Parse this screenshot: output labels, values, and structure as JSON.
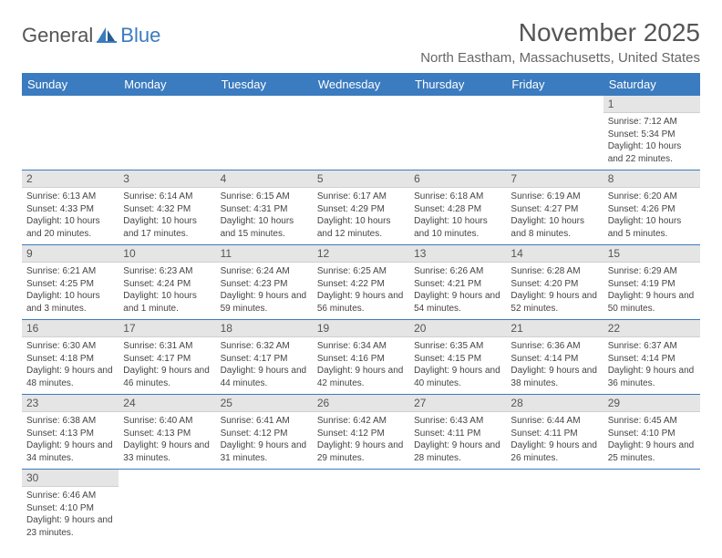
{
  "brand": {
    "text1": "General",
    "text2": "Blue"
  },
  "title": "November 2025",
  "location": "North Eastham, Massachusetts, United States",
  "colors": {
    "header_bg": "#3b7bbf",
    "header_text": "#ffffff",
    "daynum_bg": "#e5e5e5",
    "border": "#3b7bbf",
    "body_text": "#444444",
    "title_color": "#555555"
  },
  "day_headers": [
    "Sunday",
    "Monday",
    "Tuesday",
    "Wednesday",
    "Thursday",
    "Friday",
    "Saturday"
  ],
  "weeks": [
    [
      null,
      null,
      null,
      null,
      null,
      null,
      {
        "n": "1",
        "sr": "7:12 AM",
        "ss": "5:34 PM",
        "dl": "10 hours and 22 minutes."
      }
    ],
    [
      {
        "n": "2",
        "sr": "6:13 AM",
        "ss": "4:33 PM",
        "dl": "10 hours and 20 minutes."
      },
      {
        "n": "3",
        "sr": "6:14 AM",
        "ss": "4:32 PM",
        "dl": "10 hours and 17 minutes."
      },
      {
        "n": "4",
        "sr": "6:15 AM",
        "ss": "4:31 PM",
        "dl": "10 hours and 15 minutes."
      },
      {
        "n": "5",
        "sr": "6:17 AM",
        "ss": "4:29 PM",
        "dl": "10 hours and 12 minutes."
      },
      {
        "n": "6",
        "sr": "6:18 AM",
        "ss": "4:28 PM",
        "dl": "10 hours and 10 minutes."
      },
      {
        "n": "7",
        "sr": "6:19 AM",
        "ss": "4:27 PM",
        "dl": "10 hours and 8 minutes."
      },
      {
        "n": "8",
        "sr": "6:20 AM",
        "ss": "4:26 PM",
        "dl": "10 hours and 5 minutes."
      }
    ],
    [
      {
        "n": "9",
        "sr": "6:21 AM",
        "ss": "4:25 PM",
        "dl": "10 hours and 3 minutes."
      },
      {
        "n": "10",
        "sr": "6:23 AM",
        "ss": "4:24 PM",
        "dl": "10 hours and 1 minute."
      },
      {
        "n": "11",
        "sr": "6:24 AM",
        "ss": "4:23 PM",
        "dl": "9 hours and 59 minutes."
      },
      {
        "n": "12",
        "sr": "6:25 AM",
        "ss": "4:22 PM",
        "dl": "9 hours and 56 minutes."
      },
      {
        "n": "13",
        "sr": "6:26 AM",
        "ss": "4:21 PM",
        "dl": "9 hours and 54 minutes."
      },
      {
        "n": "14",
        "sr": "6:28 AM",
        "ss": "4:20 PM",
        "dl": "9 hours and 52 minutes."
      },
      {
        "n": "15",
        "sr": "6:29 AM",
        "ss": "4:19 PM",
        "dl": "9 hours and 50 minutes."
      }
    ],
    [
      {
        "n": "16",
        "sr": "6:30 AM",
        "ss": "4:18 PM",
        "dl": "9 hours and 48 minutes."
      },
      {
        "n": "17",
        "sr": "6:31 AM",
        "ss": "4:17 PM",
        "dl": "9 hours and 46 minutes."
      },
      {
        "n": "18",
        "sr": "6:32 AM",
        "ss": "4:17 PM",
        "dl": "9 hours and 44 minutes."
      },
      {
        "n": "19",
        "sr": "6:34 AM",
        "ss": "4:16 PM",
        "dl": "9 hours and 42 minutes."
      },
      {
        "n": "20",
        "sr": "6:35 AM",
        "ss": "4:15 PM",
        "dl": "9 hours and 40 minutes."
      },
      {
        "n": "21",
        "sr": "6:36 AM",
        "ss": "4:14 PM",
        "dl": "9 hours and 38 minutes."
      },
      {
        "n": "22",
        "sr": "6:37 AM",
        "ss": "4:14 PM",
        "dl": "9 hours and 36 minutes."
      }
    ],
    [
      {
        "n": "23",
        "sr": "6:38 AM",
        "ss": "4:13 PM",
        "dl": "9 hours and 34 minutes."
      },
      {
        "n": "24",
        "sr": "6:40 AM",
        "ss": "4:13 PM",
        "dl": "9 hours and 33 minutes."
      },
      {
        "n": "25",
        "sr": "6:41 AM",
        "ss": "4:12 PM",
        "dl": "9 hours and 31 minutes."
      },
      {
        "n": "26",
        "sr": "6:42 AM",
        "ss": "4:12 PM",
        "dl": "9 hours and 29 minutes."
      },
      {
        "n": "27",
        "sr": "6:43 AM",
        "ss": "4:11 PM",
        "dl": "9 hours and 28 minutes."
      },
      {
        "n": "28",
        "sr": "6:44 AM",
        "ss": "4:11 PM",
        "dl": "9 hours and 26 minutes."
      },
      {
        "n": "29",
        "sr": "6:45 AM",
        "ss": "4:10 PM",
        "dl": "9 hours and 25 minutes."
      }
    ],
    [
      {
        "n": "30",
        "sr": "6:46 AM",
        "ss": "4:10 PM",
        "dl": "9 hours and 23 minutes."
      },
      null,
      null,
      null,
      null,
      null,
      null
    ]
  ],
  "labels": {
    "sunrise": "Sunrise: ",
    "sunset": "Sunset: ",
    "daylight": "Daylight: "
  }
}
